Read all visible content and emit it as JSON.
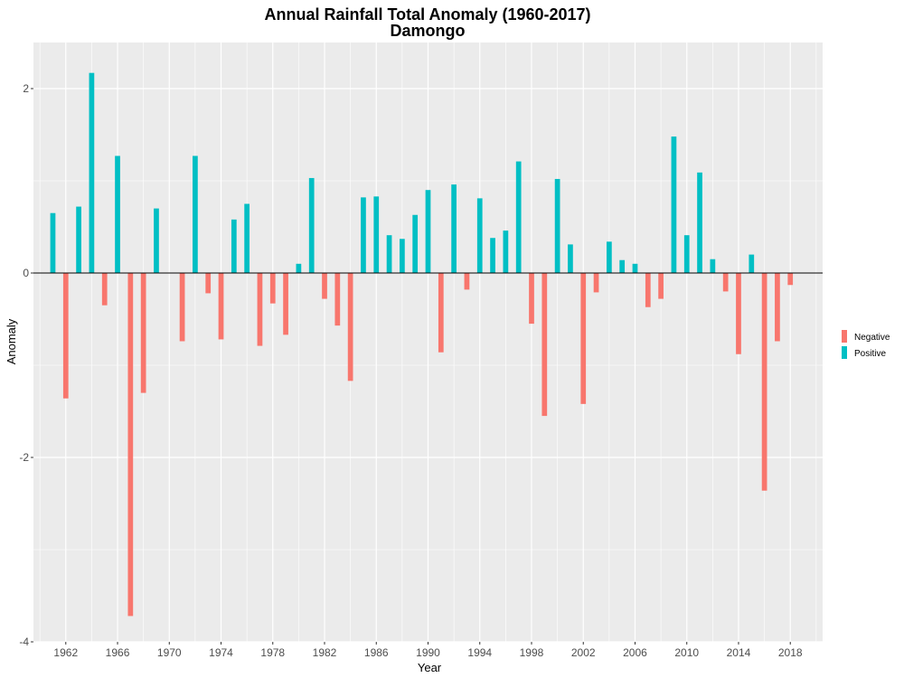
{
  "chart_data": {
    "type": "bar",
    "title": "Annual Rainfall Total Anomaly (1960-2017)",
    "subtitle": "Damongo",
    "xlabel": "Year",
    "ylabel": "Anomaly",
    "xlim": [
      1959.5,
      2020.5
    ],
    "ylim": [
      -4,
      2.5
    ],
    "x_ticks": [
      1962,
      1966,
      1970,
      1974,
      1978,
      1982,
      1986,
      1990,
      1994,
      1998,
      2002,
      2006,
      2010,
      2014,
      2018
    ],
    "y_ticks": [
      -4,
      -2,
      0,
      2
    ],
    "grid": true,
    "baseline": 0,
    "legend": {
      "position": "right",
      "entries": [
        {
          "name": "Negative",
          "color": "#F8766D"
        },
        {
          "name": "Positive",
          "color": "#00BFC4"
        }
      ]
    },
    "colors": {
      "Negative": "#F8766D",
      "Positive": "#00BFC4"
    },
    "panel_background": "#EBEBEB",
    "grid_color": "#FFFFFF",
    "series": [
      {
        "name": "Negative",
        "x": [
          1962,
          1965,
          1967,
          1968,
          1971,
          1973,
          1974,
          1977,
          1978,
          1979,
          1982,
          1983,
          1984,
          1991,
          1993,
          1998,
          1999,
          2002,
          2003,
          2007,
          2008,
          2013,
          2014,
          2016,
          2017,
          2018
        ],
        "values": [
          -1.36,
          -0.35,
          -3.72,
          -1.3,
          -0.74,
          -0.22,
          -0.72,
          -0.79,
          -0.33,
          -0.67,
          -0.28,
          -0.57,
          -1.17,
          -0.86,
          -0.18,
          -0.55,
          -1.55,
          -1.42,
          -0.21,
          -0.37,
          -0.28,
          -0.2,
          -0.88,
          -2.36,
          -0.74,
          -0.13
        ]
      },
      {
        "name": "Positive",
        "x": [
          1961,
          1963,
          1964,
          1966,
          1969,
          1972,
          1975,
          1976,
          1980,
          1981,
          1985,
          1986,
          1987,
          1988,
          1989,
          1990,
          1992,
          1994,
          1995,
          1996,
          1997,
          2000,
          2001,
          2004,
          2005,
          2006,
          2009,
          2010,
          2011,
          2012,
          2015
        ],
        "values": [
          0.65,
          0.72,
          2.17,
          1.27,
          0.7,
          1.27,
          0.58,
          0.75,
          0.1,
          1.03,
          0.82,
          0.83,
          0.41,
          0.37,
          0.63,
          0.9,
          0.96,
          0.81,
          0.38,
          0.46,
          1.21,
          1.02,
          0.31,
          0.34,
          0.14,
          0.1,
          1.48,
          0.41,
          1.09,
          0.15,
          0.2
        ]
      }
    ]
  }
}
